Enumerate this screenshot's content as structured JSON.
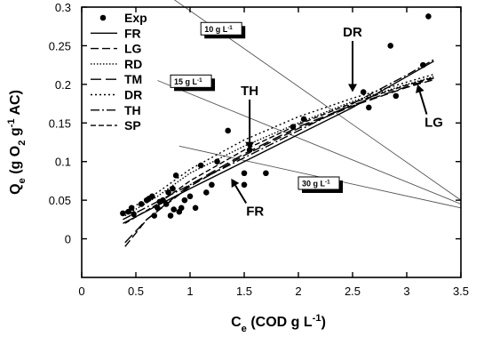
{
  "chart_data": {
    "type": "scatter",
    "xlabel": "C",
    "xlabel_sub": "e",
    "xlabel_rest": " (COD g L",
    "xlabel_sup": "-1",
    "xlabel_end": ")",
    "ylabel": "Q",
    "ylabel_sub": "e",
    "ylabel_rest": " (g O",
    "ylabel_sub2": "2",
    "ylabel_rest2": " g",
    "ylabel_sup": "-1",
    "ylabel_end": " AC)",
    "xlim": [
      0,
      3.5
    ],
    "ylim": [
      -0.05,
      0.3
    ],
    "xticks": [
      0,
      0.5,
      1,
      1.5,
      2,
      2.5,
      3,
      3.5
    ],
    "xtick_labels": [
      "0",
      "0.5",
      "1",
      "1.5",
      "2",
      "2.5",
      "3",
      "3.5"
    ],
    "yticks": [
      0,
      0.05,
      0.1,
      0.15,
      0.2,
      0.25,
      0.3
    ],
    "ytick_labels": [
      "0",
      "0.05",
      "0.1",
      "0.15",
      "0.2",
      "0.25",
      "0.3"
    ],
    "grid": false,
    "legend_position": "top-left",
    "series": [
      {
        "name": "Exp",
        "kind": "points",
        "x": [
          0.38,
          0.43,
          0.46,
          0.48,
          0.55,
          0.6,
          0.62,
          0.65,
          0.67,
          0.7,
          0.72,
          0.75,
          0.78,
          0.8,
          0.82,
          0.84,
          0.85,
          0.87,
          0.9,
          0.92,
          0.95,
          1.0,
          1.05,
          1.1,
          1.15,
          1.2,
          1.25,
          1.35,
          1.5,
          1.5,
          1.55,
          1.7,
          1.95,
          2.05,
          2.6,
          2.65,
          2.85,
          2.9,
          3.15,
          3.2
        ],
        "y": [
          0.033,
          0.035,
          0.04,
          0.032,
          0.045,
          0.05,
          0.052,
          0.055,
          0.03,
          0.04,
          0.048,
          0.05,
          0.045,
          0.06,
          0.03,
          0.065,
          0.038,
          0.082,
          0.035,
          0.04,
          0.05,
          0.055,
          0.04,
          0.095,
          0.06,
          0.07,
          0.1,
          0.14,
          0.085,
          0.07,
          0.115,
          0.085,
          0.145,
          0.155,
          0.19,
          0.17,
          0.25,
          0.185,
          0.225,
          0.288
        ]
      },
      {
        "name": "FR",
        "kind": "line",
        "dash": "",
        "x": [
          0.38,
          1.0,
          1.5,
          2.0,
          2.5,
          3.0,
          3.25
        ],
        "y": [
          0.02,
          0.065,
          0.1,
          0.135,
          0.17,
          0.21,
          0.23
        ]
      },
      {
        "name": "LG",
        "kind": "line",
        "dash": "9,4",
        "x": [
          0.4,
          0.6,
          1.0,
          1.5,
          2.0,
          2.5,
          3.0,
          3.25
        ],
        "y": [
          -0.01,
          0.025,
          0.068,
          0.108,
          0.143,
          0.172,
          0.196,
          0.206
        ]
      },
      {
        "name": "RD",
        "kind": "line",
        "dash": "1.5,2",
        "x": [
          0.4,
          0.7,
          1.0,
          1.5,
          2.0,
          2.5,
          3.0,
          3.25
        ],
        "y": [
          0.03,
          0.055,
          0.085,
          0.12,
          0.15,
          0.178,
          0.2,
          0.21
        ]
      },
      {
        "name": "TM",
        "kind": "line",
        "dash": "12,5",
        "x": [
          0.4,
          0.6,
          1.0,
          1.5,
          2.0,
          2.5,
          3.0,
          3.25
        ],
        "y": [
          -0.005,
          0.025,
          0.07,
          0.11,
          0.145,
          0.173,
          0.197,
          0.208
        ]
      },
      {
        "name": "DR",
        "kind": "line",
        "dash": "2,3",
        "x": [
          0.4,
          0.7,
          1.0,
          1.5,
          2.0,
          2.5,
          3.0,
          3.25
        ],
        "y": [
          0.035,
          0.06,
          0.09,
          0.128,
          0.158,
          0.182,
          0.203,
          0.213
        ]
      },
      {
        "name": "TH",
        "kind": "line",
        "dash": "10,3,2,3",
        "x": [
          0.38,
          1.0,
          1.5,
          2.0,
          2.5,
          3.0,
          3.25
        ],
        "y": [
          0.025,
          0.07,
          0.105,
          0.14,
          0.175,
          0.212,
          0.232
        ]
      },
      {
        "name": "SP",
        "kind": "line",
        "dash": "6,3",
        "x": [
          0.4,
          0.7,
          1.0,
          1.5,
          2.0,
          2.5,
          3.0,
          3.25
        ],
        "y": [
          0.02,
          0.045,
          0.075,
          0.115,
          0.148,
          0.176,
          0.199,
          0.209
        ]
      }
    ],
    "operating_lines": [
      {
        "x": [
          0.85,
          3.5
        ],
        "y": [
          0.31,
          0.05
        ]
      },
      {
        "x": [
          0.7,
          3.5
        ],
        "y": [
          0.205,
          0.045
        ]
      },
      {
        "x": [
          0.9,
          3.5
        ],
        "y": [
          0.12,
          0.04
        ]
      }
    ],
    "operating_line_labels": [
      {
        "text": "10 g L",
        "sup": "-1",
        "x": 1.1,
        "y": 0.264
      },
      {
        "text": "15 g L",
        "sup": "-1",
        "x": 0.82,
        "y": 0.196
      },
      {
        "text": "30 g L",
        "sup": "-1",
        "x": 2.0,
        "y": 0.064
      }
    ],
    "annotations": [
      {
        "text": "DR",
        "x": 2.5,
        "y": 0.262,
        "arrow_to": [
          2.5,
          0.19
        ]
      },
      {
        "text": "TH",
        "x": 1.55,
        "y": 0.186,
        "arrow_to": [
          1.55,
          0.115
        ]
      },
      {
        "text": "LG",
        "x": 3.25,
        "y": 0.145,
        "arrow_to": [
          3.1,
          0.2
        ]
      },
      {
        "text": "FR",
        "x": 1.6,
        "y": 0.03,
        "arrow_to": [
          1.38,
          0.078
        ]
      }
    ]
  }
}
